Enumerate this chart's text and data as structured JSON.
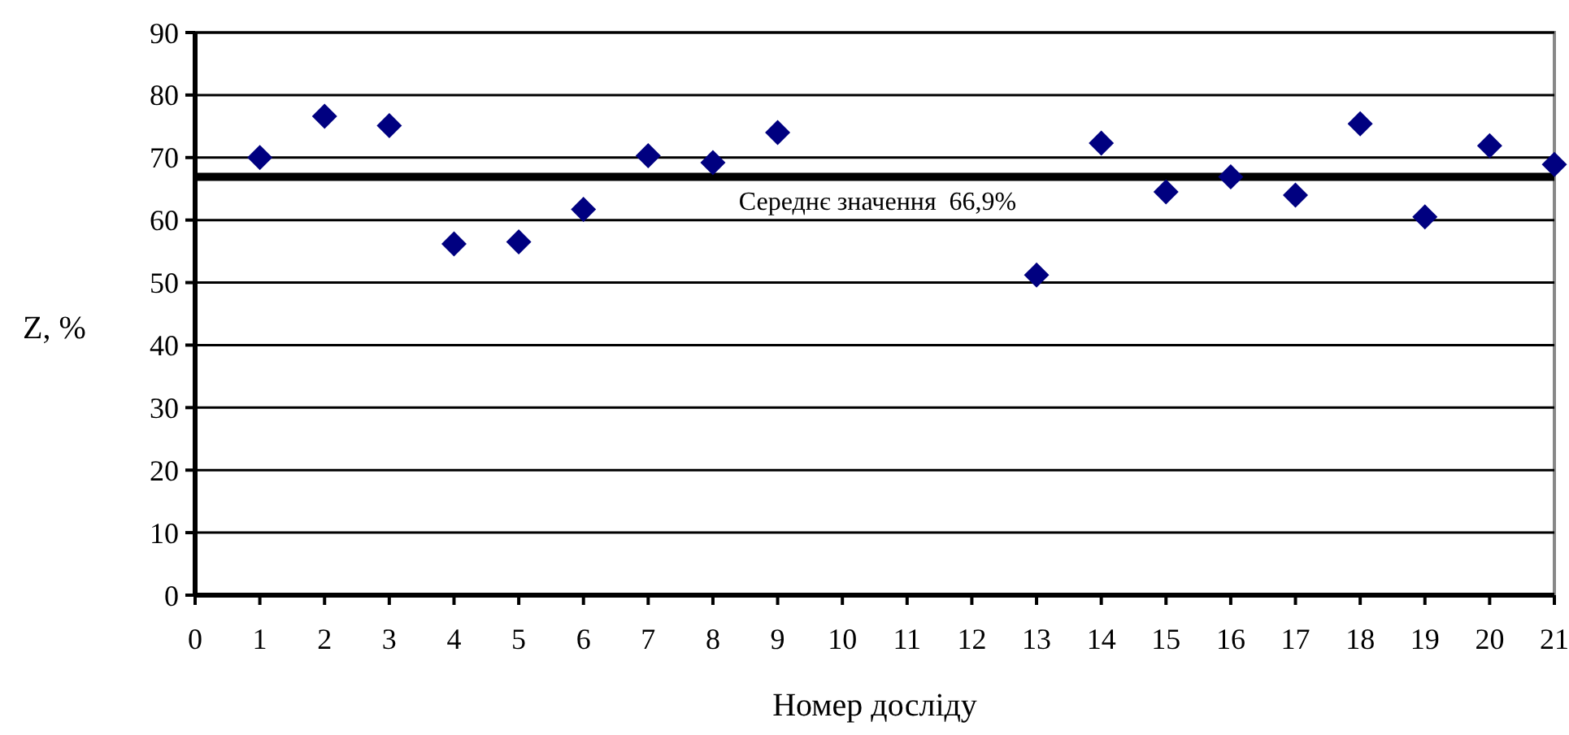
{
  "chart_data": {
    "type": "scatter",
    "xlabel": "Номер досліду",
    "ylabel": "Z, %",
    "x": [
      1,
      2,
      3,
      4,
      5,
      6,
      7,
      8,
      9,
      13,
      14,
      15,
      16,
      17,
      18,
      19,
      20,
      21
    ],
    "series": [
      {
        "color": "#000080",
        "values": [
          70.0,
          76.6,
          75.1,
          56.2,
          56.5,
          61.7,
          70.3,
          69.2,
          74.0,
          51.2,
          72.3,
          64.5,
          66.9,
          64.0,
          75.4,
          60.5,
          71.9,
          68.9
        ]
      }
    ],
    "xlim": [
      0,
      21
    ],
    "xticks": [
      0,
      1,
      2,
      3,
      4,
      5,
      6,
      7,
      8,
      9,
      10,
      11,
      12,
      13,
      14,
      15,
      16,
      17,
      18,
      19,
      20,
      21
    ],
    "ylim": [
      0,
      90
    ],
    "yticks": [
      0,
      10,
      20,
      30,
      40,
      50,
      60,
      70,
      80,
      90
    ],
    "grid": "y",
    "marker": "diamond",
    "ref_lines": [
      {
        "axis": "y",
        "value": 66.9,
        "label": "Середнє значення  66,9%",
        "color": "#000000"
      }
    ]
  }
}
